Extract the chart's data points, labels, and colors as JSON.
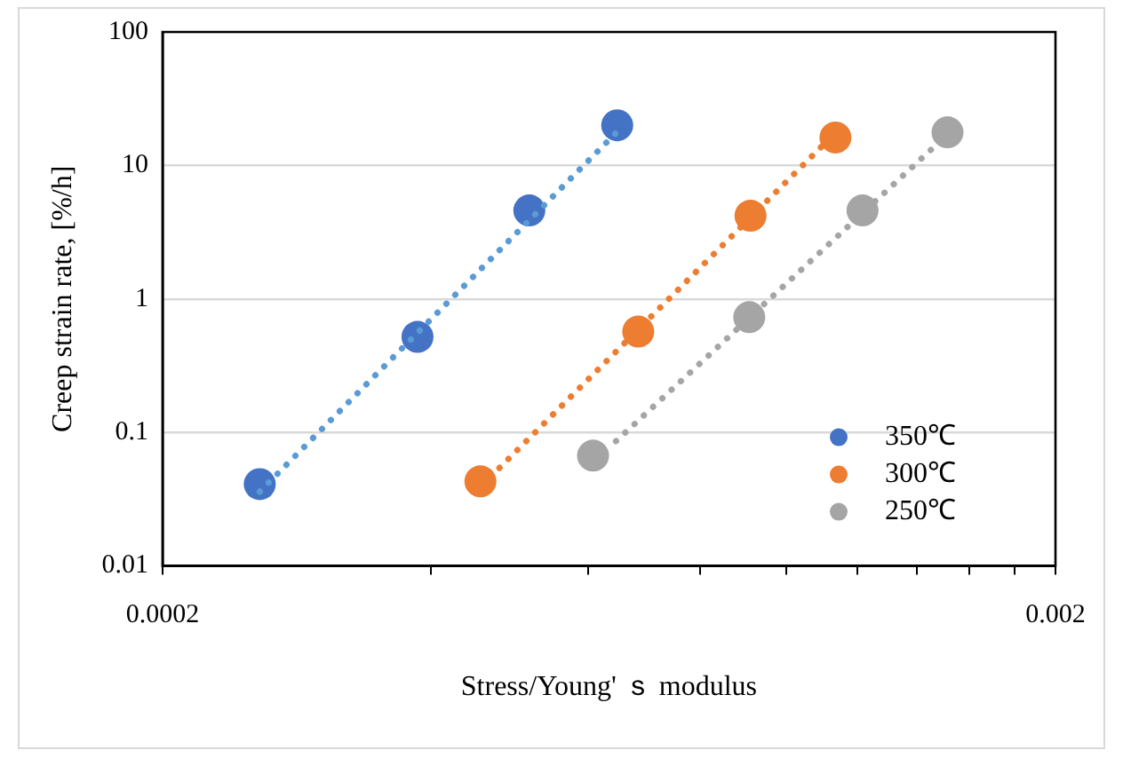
{
  "chart_data": {
    "type": "scatter",
    "xlabel": "Stress/Young' ｓ modulus",
    "ylabel": "Creep strain rate, [%/h]",
    "log": "xy",
    "grid": "y",
    "legend": "bottom right",
    "marker": "circle",
    "xlim": [
      0.0002,
      0.002
    ],
    "xticks": [
      0.0002,
      {
        "value": 0.0004,
        "label": null
      },
      {
        "value": 0.0006,
        "label": null
      },
      {
        "value": 0.0008,
        "label": null
      },
      {
        "value": 0.001,
        "label": null
      },
      {
        "value": 0.0012,
        "label": null
      },
      {
        "value": 0.0014,
        "label": null
      },
      {
        "value": 0.0016,
        "label": null
      },
      {
        "value": 0.0018,
        "label": null
      },
      0.002
    ],
    "ylim": [
      0.01,
      100
    ],
    "yticks": [
      0.01,
      0.1,
      1,
      10,
      100
    ],
    "series": [
      {
        "type": "line",
        "line_style": "dotted",
        "marker": "none",
        "color": "#5b9bd5",
        "x": [
          0.000257,
          0.000646
        ],
        "values": [
          0.036,
          17.9
        ]
      },
      {
        "type": "line",
        "line_style": "dotted",
        "marker": "none",
        "color": "#ed7d31",
        "x": [
          0.000466,
          0.001104
        ],
        "values": [
          0.0465,
          14.7
        ]
      },
      {
        "type": "line",
        "line_style": "dotted",
        "marker": "none",
        "color": "#a5a5a5",
        "x": [
          0.000644,
          0.001478
        ],
        "values": [
          0.086,
          14.7
        ]
      },
      {
        "name": "350℃",
        "color": "#4472c4",
        "x": [
          0.000257,
          0.000386,
          0.000515,
          0.000646
        ],
        "values": [
          0.041,
          0.52,
          4.6,
          20
        ]
      },
      {
        "name": "300℃",
        "color": "#ed7d31",
        "x": [
          0.000454,
          0.000682,
          0.000911,
          0.001134
        ],
        "values": [
          0.043,
          0.57,
          4.2,
          16.2
        ]
      },
      {
        "name": "250℃",
        "color": "#a5a5a5",
        "x": [
          0.000607,
          0.000908,
          0.001216,
          0.001514
        ],
        "values": [
          0.067,
          0.73,
          4.6,
          17.7
        ]
      }
    ]
  }
}
